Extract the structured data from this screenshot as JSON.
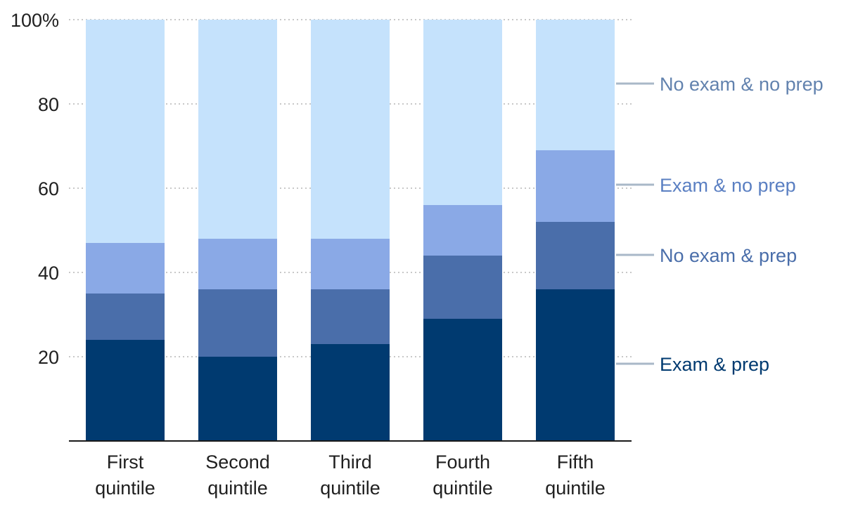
{
  "chart_data": {
    "type": "bar",
    "stacked": true,
    "categories": [
      [
        "First",
        "quintile"
      ],
      [
        "Second",
        "quintile"
      ],
      [
        "Third",
        "quintile"
      ],
      [
        "Fourth",
        "quintile"
      ],
      [
        "Fifth",
        "quintile"
      ]
    ],
    "series": [
      {
        "name": "Exam & prep",
        "values": [
          24,
          20,
          23,
          29,
          36
        ],
        "color": "#003a70",
        "label_color": "#003a70"
      },
      {
        "name": "No exam & prep",
        "values": [
          11,
          16,
          13,
          15,
          16
        ],
        "color": "#4a6eaa",
        "label_color": "#4a6eaa"
      },
      {
        "name": "Exam & no prep",
        "values": [
          12,
          12,
          12,
          12,
          17
        ],
        "color": "#8aa9e6",
        "label_color": "#5a7fc2"
      },
      {
        "name": "No exam & no prep",
        "values": [
          53,
          52,
          52,
          44,
          31
        ],
        "color": "#c5e2fc",
        "label_color": "#6282ae"
      }
    ],
    "ylim": [
      0,
      100
    ],
    "yticks": [
      "20",
      "40",
      "60",
      "80",
      "100%"
    ],
    "ytick_values": [
      20,
      40,
      60,
      80,
      100
    ],
    "grid": "dotted horizontal",
    "legend": "right, direct labels"
  }
}
